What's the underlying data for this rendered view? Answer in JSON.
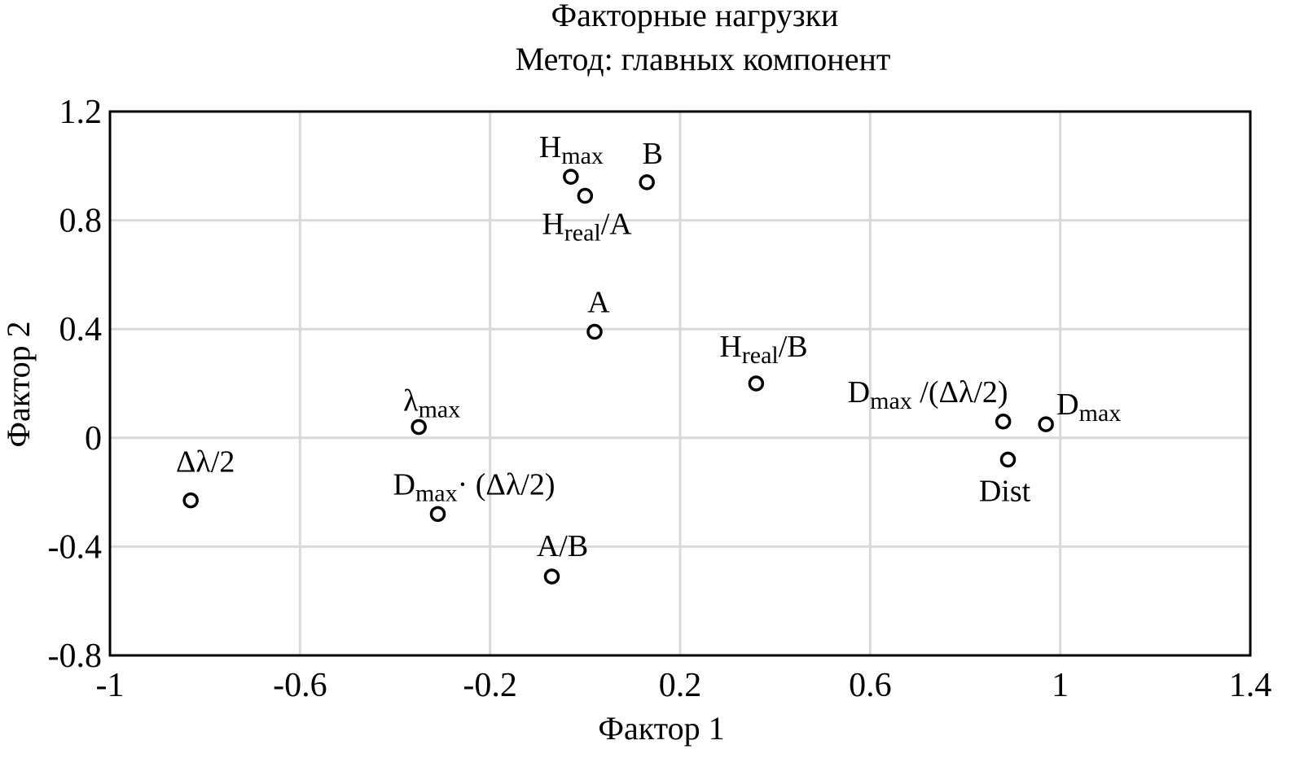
{
  "chart_data": {
    "type": "scatter",
    "title": "Факторные нагрузки",
    "subtitle": "Метод:  главных компонент",
    "xlabel": "Фактор 1",
    "ylabel": "Фактор 2",
    "xlim": [
      -1,
      1.4
    ],
    "ylim": [
      -0.8,
      1.2
    ],
    "xticks": [
      -1,
      -0.6,
      -0.2,
      0.2,
      0.6,
      1,
      1.4
    ],
    "yticks": [
      1.2,
      0.8,
      0.4,
      0,
      -0.4,
      -0.8
    ],
    "grid": true,
    "x": [
      -0.83,
      -0.35,
      -0.31,
      -0.07,
      -0.03,
      0,
      0.13,
      0.02,
      0.36,
      0.88,
      0.97,
      0.89
    ],
    "values": [
      -0.23,
      0.04,
      -0.28,
      -0.51,
      0.96,
      0.89,
      0.94,
      0.39,
      0.2,
      0.06,
      0.05,
      -0.08
    ],
    "point_labels": [
      {
        "text": "Δλ/2"
      },
      {
        "text": "λ",
        "sub": "max"
      },
      {
        "text": "D",
        "sub": "max",
        "tail": "· (Δλ/2)"
      },
      {
        "text": "A/B"
      },
      {
        "text": "H",
        "sub": "max"
      },
      {
        "text": "H",
        "sub": "real",
        "tail": "/A"
      },
      {
        "text": "B"
      },
      {
        "text": "A"
      },
      {
        "text": "H",
        "sub": "real",
        "tail": "/B"
      },
      {
        "text": "D",
        "sub": "max",
        "tail": " /(Δλ/2)"
      },
      {
        "text": "D",
        "sub": "max"
      },
      {
        "text": "Dist"
      }
    ]
  }
}
